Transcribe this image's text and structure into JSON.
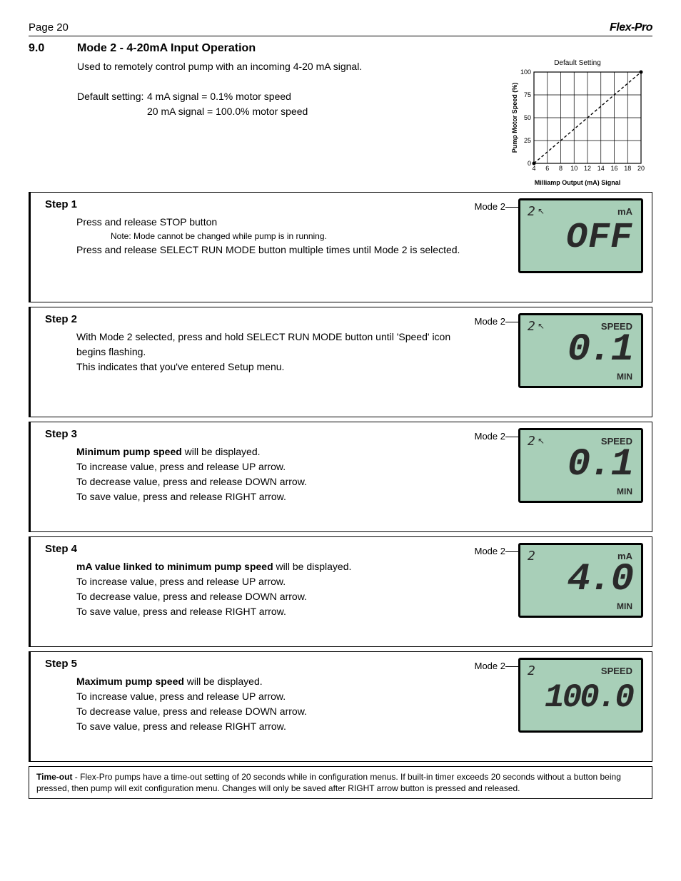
{
  "header": {
    "page": "Page 20",
    "brand": "Flex-Pro"
  },
  "section": {
    "num": "9.0",
    "title": "Mode 2 - 4-20mA Input Operation",
    "intro": "Used to remotely control pump with an incoming 4-20 mA signal.",
    "default_label": "Default setting:",
    "default_line1": "4 mA signal = 0.1% motor speed",
    "default_line2": "20 mA signal = 100.0% motor speed"
  },
  "chart": {
    "title": "Default Setting",
    "ylabel": "Pump Motor Speed (%)",
    "xlabel": "Milliamp Output (mA) Signal",
    "y_ticks": [
      0,
      25,
      50,
      75,
      100
    ],
    "x_ticks": [
      4,
      6,
      8,
      10,
      12,
      14,
      16,
      18,
      20
    ],
    "line_start": {
      "x": 4,
      "y": 0
    },
    "line_end": {
      "x": 20,
      "y": 100
    },
    "bg_color": "#ffffff",
    "grid_color": "#000000",
    "line_color": "#000000",
    "line_dash": "4 3",
    "width": 190,
    "height": 150,
    "tick_fontsize": 9,
    "label_fontsize": 9
  },
  "mode_label": "Mode 2",
  "steps": [
    {
      "title": "Step 1",
      "lines": [
        {
          "text": "Press and release STOP button"
        },
        {
          "text": "Note: Mode cannot be changed while pump is in running.",
          "cls": "note"
        },
        {
          "text": "Press and release SELECT RUN MODE button multiple times until Mode 2 is selected."
        }
      ],
      "lcd": {
        "mode": "2",
        "arrow": "↖",
        "top": "mA",
        "main": "OFF",
        "main_cls": "off",
        "bot": ""
      }
    },
    {
      "title": "Step 2",
      "lines": [
        {
          "text": "With Mode 2 selected, press and hold SELECT RUN MODE button until 'Speed' icon begins flashing."
        },
        {
          "text": "This indicates that you've entered Setup menu."
        }
      ],
      "lcd": {
        "mode": "2",
        "arrow": "↖",
        "top": "SPEED",
        "main": "0.1",
        "main_cls": "",
        "bot": "MIN"
      }
    },
    {
      "title": "Step 3",
      "lines": [
        {
          "bold": "Minimum pump speed",
          "rest": " will be displayed."
        },
        {
          "text": "To increase value, press and release UP arrow."
        },
        {
          "text": "To decrease value, press and release DOWN arrow."
        },
        {
          "text": "To save value, press and release RIGHT arrow."
        }
      ],
      "lcd": {
        "mode": "2",
        "arrow": "↖",
        "top": "SPEED",
        "main": "0.1",
        "main_cls": "",
        "bot": "MIN"
      }
    },
    {
      "title": "Step 4",
      "lines": [
        {
          "bold": "mA value linked to minimum pump speed",
          "rest": " will be displayed."
        },
        {
          "text": "To increase value, press and release UP arrow."
        },
        {
          "text": "To decrease value, press and release DOWN arrow."
        },
        {
          "text": "To save value, press and release RIGHT arrow."
        }
      ],
      "lcd": {
        "mode": "2",
        "arrow": "",
        "top": "mA",
        "main": "4.0",
        "main_cls": "",
        "bot": "MIN"
      }
    },
    {
      "title": "Step 5",
      "lines": [
        {
          "bold": "Maximum pump speed",
          "rest": " will be displayed."
        },
        {
          "text": "To increase value, press and release UP arrow."
        },
        {
          "text": "To decrease value, press and release DOWN arrow."
        },
        {
          "text": "To save value, press and release RIGHT arrow."
        }
      ],
      "lcd": {
        "mode": "2",
        "arrow": "",
        "top": "SPEED",
        "main": "100.0",
        "main_cls": "hundred",
        "bot": ""
      }
    }
  ],
  "timeout": {
    "label": "Time-out",
    "text": " - Flex-Pro pumps have a time-out setting of 20 seconds while in configuration menus. If built-in timer exceeds 20 seconds without a button being pressed, then pump will exit configuration menu. Changes will only be saved after RIGHT arrow button is pressed and released."
  }
}
